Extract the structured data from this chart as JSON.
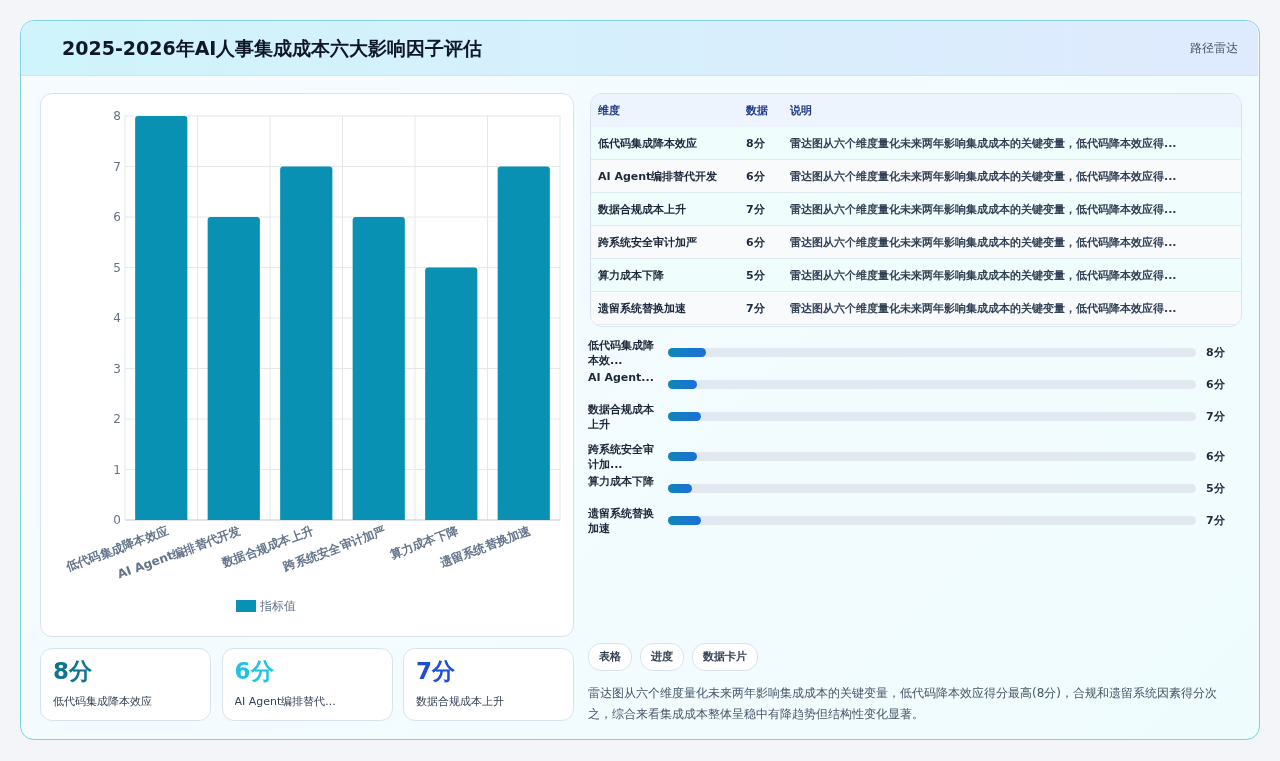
{
  "chart_data": [
    {
      "type": "bar",
      "title": "2025-2026年AI人事集成成本六大影响因子评估",
      "categories": [
        "低代码集成降本效应",
        "AI Agent编排替代开发",
        "数据合规成本上升",
        "跨系统安全审计加严",
        "算力成本下降",
        "遗留系统替换加速"
      ],
      "series": [
        {
          "name": "指标值",
          "color": "#0891b2",
          "values": [
            8,
            6,
            7,
            6,
            5,
            7
          ]
        }
      ],
      "ylim": [
        0,
        8
      ],
      "yticks": [
        0,
        1,
        2,
        3,
        4,
        5,
        6,
        7,
        8
      ],
      "grid": true,
      "legend": "bottom",
      "annotations": [
        "路径雷达",
        "表格",
        "进度",
        "数据卡片",
        "雷达图从六个维度量化未来两年影响集成成本的关键变量，低代码降本效应得分最高(8分)，合规和遗留系统因素得分次之，综合来看集成成本整体呈稳中有降趋势但结构性变化显著。"
      ]
    },
    {
      "type": "other",
      "categories": [
        "低代码集成降本效应",
        "AI Agent编排替代开发",
        "数据合规成本上升",
        "跨系统安全审计加严",
        "算力成本下降",
        "遗留系统替换加速"
      ],
      "value_labels": [
        "8分",
        "6分",
        "7分",
        "6分",
        "5分",
        "7分"
      ],
      "annotations": [
        "维度",
        "数据",
        "说明",
        "雷达图从六个维度量化未来两年影响集成成本的关键变量，低代码降本效应得...",
        "雷达图从六个维度量化未来两年影响集成成本的关键变量，低代码降本效应得...",
        "雷达图从六个维度量化未来两年影响集成成本的关键变量，低代码降本效应得...",
        "雷达图从六个维度量化未来两年影响集成成本的关键变量，低代码降本效应得...",
        "雷达图从六个维度量化未来两年影响集成成本的关键变量，低代码降本效应得...",
        "雷达图从六个维度量化未来两年影响集成成本的关键变量，低代码降本效应得..."
      ]
    },
    {
      "type": "other",
      "categories": [
        "低代码集成降本效...",
        "AI Agent...",
        "数据合规成本上升",
        "跨系统安全审计加...",
        "算力成本下降",
        "遗留系统替换加速"
      ],
      "values": [
        8,
        6,
        7,
        6,
        5,
        7
      ],
      "value_labels": [
        "8分",
        "6分",
        "7分",
        "6分",
        "5分",
        "7分"
      ],
      "color": "#1d6fd6"
    },
    {
      "type": "other",
      "categories": [
        "低代码集成降本效应",
        "AI Agent编排替代...",
        "数据合规成本上升"
      ],
      "value_labels": [
        "8分",
        "6分",
        "7分"
      ]
    }
  ]
}
